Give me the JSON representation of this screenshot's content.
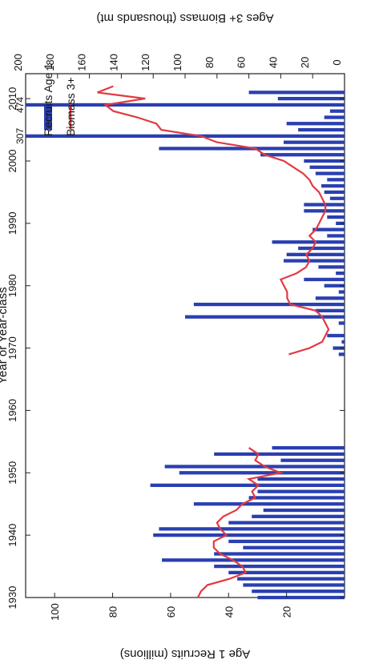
{
  "chart_data": {
    "type": "bar",
    "xlabel": "Year or Year-class",
    "ylabel": "Age 1 Recruits (millions)",
    "y2label": "Ages 3+ Biomass (thousands mt)",
    "xlim": [
      1930,
      2014
    ],
    "ylim": [
      0,
      110
    ],
    "y2lim": [
      0,
      200
    ],
    "xticks": [
      "1930",
      "1940",
      "1950",
      "1960",
      "1970",
      "1980",
      "1990",
      "2000",
      "2010"
    ],
    "yticks": [
      "20",
      "40",
      "60",
      "80",
      "100"
    ],
    "y2ticks": [
      "0",
      "20",
      "40",
      "60",
      "80",
      "100",
      "120",
      "140",
      "160",
      "180",
      "200"
    ],
    "legend_position": "top-left",
    "off_scale_labels": [
      {
        "year": 2004,
        "text": "307"
      },
      {
        "year": 2009,
        "text": "474"
      }
    ],
    "series": [
      {
        "name": "Recruits Age 1",
        "kind": "bar",
        "axis": "left",
        "color": "#2a3fb0",
        "x": [
          1930,
          1931,
          1932,
          1933,
          1934,
          1935,
          1936,
          1937,
          1938,
          1939,
          1940,
          1941,
          1942,
          1943,
          1944,
          1945,
          1946,
          1947,
          1948,
          1949,
          1950,
          1951,
          1952,
          1953,
          1954,
          1969,
          1970,
          1971,
          1972,
          1973,
          1974,
          1975,
          1976,
          1977,
          1978,
          1979,
          1980,
          1981,
          1982,
          1983,
          1984,
          1985,
          1986,
          1987,
          1988,
          1989,
          1990,
          1991,
          1992,
          1993,
          1994,
          1995,
          1996,
          1997,
          1998,
          1999,
          2000,
          2001,
          2002,
          2003,
          2004,
          2005,
          2006,
          2007,
          2008,
          2009,
          2010,
          2011
        ],
        "values": [
          30,
          32,
          35,
          37,
          40,
          45,
          63,
          45,
          35,
          40,
          66,
          64,
          40,
          32,
          28,
          52,
          33,
          30,
          67,
          30,
          57,
          62,
          22,
          45,
          25,
          2,
          4,
          1,
          6,
          0,
          2,
          55,
          10,
          52,
          10,
          2,
          7,
          14,
          3,
          9,
          21,
          20,
          16,
          25,
          6,
          11,
          3,
          6,
          14,
          14,
          5,
          7,
          8,
          6,
          10,
          12,
          14,
          29,
          64,
          21,
          110,
          16,
          20,
          7,
          5,
          110,
          23,
          33
        ]
      },
      {
        "name": "Biomass 3+",
        "kind": "line",
        "axis": "right",
        "color": "#e23a42",
        "x": [
          1930,
          1931,
          1932,
          1933,
          1934,
          1935,
          1936,
          1937,
          1938,
          1939,
          1940,
          1941,
          1942,
          1943,
          1944,
          1945,
          1946,
          1947,
          1948,
          1949,
          1950,
          1951,
          1952,
          1953,
          1954,
          1969,
          1970,
          1971,
          1972,
          1973,
          1974,
          1975,
          1976,
          1977,
          1978,
          1979,
          1980,
          1981,
          1982,
          1983,
          1984,
          1985,
          1986,
          1987,
          1988,
          1989,
          1990,
          1991,
          1992,
          1993,
          1994,
          1995,
          1996,
          1997,
          1998,
          1999,
          2000,
          2001,
          2002,
          2003,
          2004,
          2005,
          2006,
          2007,
          2008,
          2009,
          2010,
          2011,
          2012
        ],
        "values": [
          92,
          90,
          86,
          72,
          62,
          64,
          70,
          78,
          82,
          82,
          74,
          78,
          80,
          76,
          68,
          64,
          56,
          58,
          54,
          60,
          40,
          50,
          56,
          54,
          60,
          35,
          22,
          14,
          12,
          10,
          12,
          14,
          18,
          34,
          36,
          36,
          38,
          40,
          30,
          24,
          22,
          24,
          20,
          18,
          22,
          18,
          16,
          14,
          12,
          12,
          14,
          16,
          20,
          22,
          26,
          32,
          38,
          50,
          56,
          80,
          90,
          115,
          118,
          130,
          145,
          150,
          125,
          155,
          145
        ]
      }
    ]
  }
}
